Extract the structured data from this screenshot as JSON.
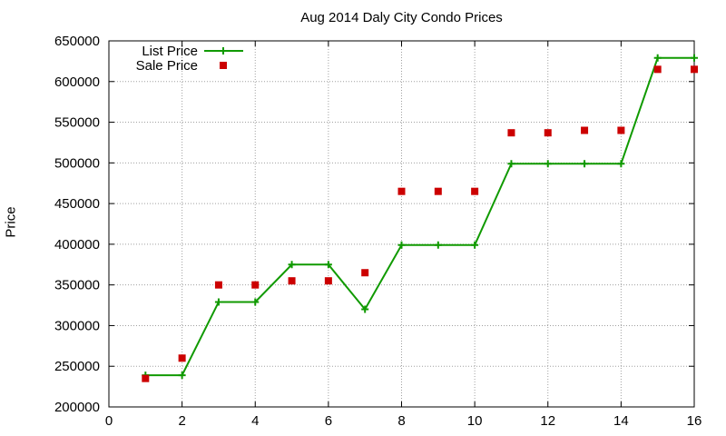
{
  "chart_data": {
    "type": "line",
    "title": "Aug 2014 Daly City Condo Prices",
    "xlabel": "",
    "ylabel": "Price",
    "xlim": [
      0,
      16
    ],
    "ylim": [
      200000,
      650000
    ],
    "xticks": [
      0,
      2,
      4,
      6,
      8,
      10,
      12,
      14,
      16
    ],
    "yticks": [
      200000,
      250000,
      300000,
      350000,
      400000,
      450000,
      500000,
      550000,
      600000,
      650000
    ],
    "grid": true,
    "legend_position": "top-left",
    "series": [
      {
        "name": "List Price",
        "style": "line+cross",
        "color": "#109a00",
        "x": [
          1,
          2,
          3,
          4,
          5,
          6,
          7,
          8,
          9,
          10,
          11,
          12,
          13,
          14,
          15,
          16
        ],
        "values": [
          239000,
          239000,
          329000,
          329000,
          375000,
          375000,
          320000,
          399000,
          399000,
          399000,
          499000,
          499000,
          499000,
          499000,
          629000,
          629000
        ]
      },
      {
        "name": "Sale Price",
        "style": "square-points",
        "color": "#cc0000",
        "x": [
          1,
          2,
          3,
          4,
          5,
          6,
          7,
          8,
          9,
          10,
          11,
          12,
          13,
          14,
          15,
          16
        ],
        "values": [
          235000,
          260000,
          350000,
          350000,
          355000,
          355000,
          365000,
          465000,
          465000,
          465000,
          537000,
          537000,
          540000,
          540000,
          615000,
          615000
        ]
      }
    ]
  }
}
